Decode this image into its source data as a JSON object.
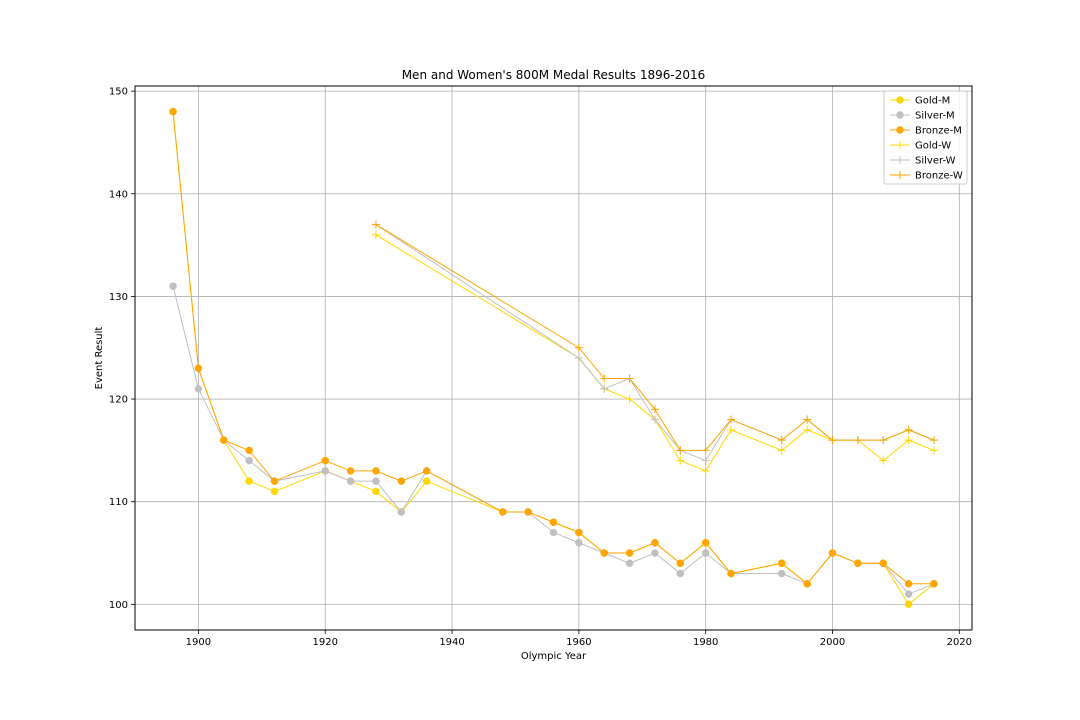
{
  "chart_data": {
    "type": "line",
    "title": "Men and Women's 800M Medal Results 1896-2016",
    "xlabel": "Olympic Year",
    "ylabel": "Event Result",
    "xlim": [
      1890,
      2022
    ],
    "ylim": [
      97.5,
      150.5
    ],
    "xticks": [
      1900,
      1920,
      1940,
      1960,
      1980,
      2000,
      2020
    ],
    "yticks": [
      100,
      110,
      120,
      130,
      140,
      150
    ],
    "grid": true,
    "legend_position": "top-right",
    "series": [
      {
        "name": "Gold-M",
        "color": "#FFD700",
        "marker": "circle",
        "points": [
          [
            1896,
            148
          ],
          [
            1900,
            123
          ],
          [
            1904,
            116
          ],
          [
            1908,
            112
          ],
          [
            1912,
            111
          ],
          [
            1920,
            113
          ],
          [
            1924,
            112
          ],
          [
            1928,
            111
          ],
          [
            1932,
            109
          ],
          [
            1936,
            112
          ],
          [
            1948,
            109
          ],
          [
            1952,
            109
          ],
          [
            1956,
            108
          ],
          [
            1960,
            107
          ],
          [
            1964,
            105
          ],
          [
            1968,
            105
          ],
          [
            1972,
            106
          ],
          [
            1976,
            104
          ],
          [
            1980,
            106
          ],
          [
            1984,
            103
          ],
          [
            1992,
            104
          ],
          [
            1996,
            102
          ],
          [
            2000,
            105
          ],
          [
            2004,
            104
          ],
          [
            2008,
            104
          ],
          [
            2012,
            100
          ],
          [
            2016,
            102
          ]
        ]
      },
      {
        "name": "Silver-M",
        "color": "#C0C0C0",
        "marker": "circle",
        "points": [
          [
            1896,
            131
          ],
          [
            1900,
            121
          ],
          [
            1904,
            116
          ],
          [
            1908,
            114
          ],
          [
            1912,
            112
          ],
          [
            1920,
            113
          ],
          [
            1924,
            112
          ],
          [
            1928,
            112
          ],
          [
            1932,
            109
          ],
          [
            1936,
            113
          ],
          [
            1948,
            109
          ],
          [
            1952,
            109
          ],
          [
            1956,
            107
          ],
          [
            1960,
            106
          ],
          [
            1964,
            105
          ],
          [
            1968,
            104
          ],
          [
            1972,
            105
          ],
          [
            1976,
            103
          ],
          [
            1980,
            105
          ],
          [
            1984,
            103
          ],
          [
            1992,
            103
          ],
          [
            1996,
            102
          ],
          [
            2000,
            105
          ],
          [
            2004,
            104
          ],
          [
            2008,
            104
          ],
          [
            2012,
            101
          ],
          [
            2016,
            102
          ]
        ]
      },
      {
        "name": "Bronze-M",
        "color": "#FFA500",
        "marker": "circle",
        "points": [
          [
            1896,
            148
          ],
          [
            1900,
            123
          ],
          [
            1904,
            116
          ],
          [
            1908,
            115
          ],
          [
            1912,
            112
          ],
          [
            1920,
            114
          ],
          [
            1924,
            113
          ],
          [
            1928,
            113
          ],
          [
            1932,
            112
          ],
          [
            1936,
            113
          ],
          [
            1948,
            109
          ],
          [
            1952,
            109
          ],
          [
            1956,
            108
          ],
          [
            1960,
            107
          ],
          [
            1964,
            105
          ],
          [
            1968,
            105
          ],
          [
            1972,
            106
          ],
          [
            1976,
            104
          ],
          [
            1980,
            106
          ],
          [
            1984,
            103
          ],
          [
            1992,
            104
          ],
          [
            1996,
            102
          ],
          [
            2000,
            105
          ],
          [
            2004,
            104
          ],
          [
            2008,
            104
          ],
          [
            2012,
            102
          ],
          [
            2016,
            102
          ]
        ]
      },
      {
        "name": "Gold-W",
        "color": "#FFD700",
        "marker": "plus",
        "points": [
          [
            1928,
            136
          ],
          [
            1960,
            124
          ],
          [
            1964,
            121
          ],
          [
            1968,
            120
          ],
          [
            1972,
            118
          ],
          [
            1976,
            114
          ],
          [
            1980,
            113
          ],
          [
            1984,
            117
          ],
          [
            1992,
            115
          ],
          [
            1996,
            117
          ],
          [
            2000,
            116
          ],
          [
            2004,
            116
          ],
          [
            2008,
            114
          ],
          [
            2012,
            116
          ],
          [
            2016,
            115
          ]
        ]
      },
      {
        "name": "Silver-W",
        "color": "#C0C0C0",
        "marker": "plus",
        "points": [
          [
            1928,
            137
          ],
          [
            1960,
            124
          ],
          [
            1964,
            121
          ],
          [
            1968,
            122
          ],
          [
            1972,
            118
          ],
          [
            1976,
            115
          ],
          [
            1980,
            114
          ],
          [
            1984,
            118
          ],
          [
            1992,
            116
          ],
          [
            1996,
            118
          ],
          [
            2000,
            116
          ],
          [
            2004,
            116
          ],
          [
            2008,
            116
          ],
          [
            2012,
            117
          ],
          [
            2016,
            116
          ]
        ]
      },
      {
        "name": "Bronze-W",
        "color": "#FFA500",
        "marker": "plus",
        "points": [
          [
            1928,
            137
          ],
          [
            1960,
            125
          ],
          [
            1964,
            122
          ],
          [
            1968,
            122
          ],
          [
            1972,
            119
          ],
          [
            1976,
            115
          ],
          [
            1980,
            115
          ],
          [
            1984,
            118
          ],
          [
            1992,
            116
          ],
          [
            1996,
            118
          ],
          [
            2000,
            116
          ],
          [
            2004,
            116
          ],
          [
            2008,
            116
          ],
          [
            2012,
            117
          ],
          [
            2016,
            116
          ]
        ]
      }
    ]
  }
}
